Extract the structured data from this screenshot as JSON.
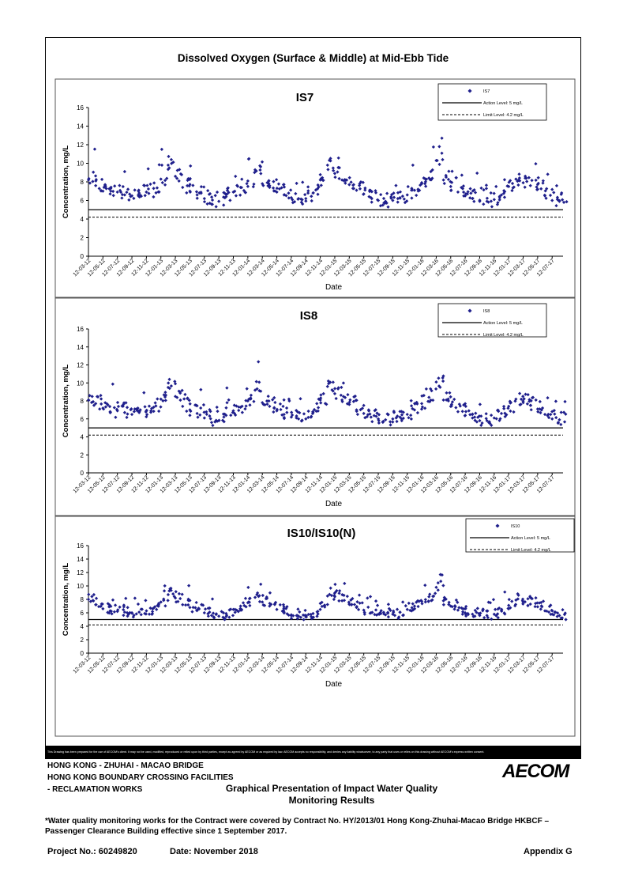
{
  "page": {
    "title": "Dissolved Oxygen (Surface & Middle) at Mid-Ebb Tide",
    "disclaimer": "This Drawing has been prepared for the use of AECOM's client. It may not be used, modified, reproduced or relied upon by third parties, except as agreed by AECOM or as required by law. AECOM accepts no responsibility, and denies any liability whatsoever, to any party that uses or relies on this drawing without AECOM's express written consent.",
    "title_block": {
      "line1": "HONG KONG - ZHUHAI - MACAO BRIDGE",
      "line2": "HONG KONG BOUNDARY CROSSING FACILITIES",
      "line3": "- RECLAMATION WORKS",
      "graph_title_1": "Graphical Presentation of Impact Water Quality",
      "graph_title_2": "Monitoring Results",
      "logo": "AECOM"
    },
    "note": "*Water quality monitoring works for the Contract were covered by Contract No. HY/2013/01 Hong Kong-Zhuhai-Macao Bridge HKBCF – Passenger Clearance Building effective since 1 September 2017.",
    "project_no": "Project No.: 60249820",
    "date": "Date: November 2018",
    "appendix": "Appendix G"
  },
  "chart_data": [
    {
      "type": "scatter",
      "title": "IS7",
      "xlabel": "Date",
      "ylabel": "Concentration, mg/L",
      "ylim": [
        0,
        16
      ],
      "yticks": [
        0,
        2,
        4,
        6,
        8,
        10,
        12,
        14,
        16
      ],
      "xticks": [
        "12-03-12",
        "12-05-12",
        "12-07-12",
        "12-09-12",
        "12-11-12",
        "12-01-13",
        "12-03-13",
        "12-05-13",
        "12-07-13",
        "12-09-13",
        "12-11-13",
        "12-01-14",
        "12-03-14",
        "12-05-14",
        "12-07-14",
        "12-09-14",
        "12-11-14",
        "12-01-15",
        "12-03-15",
        "12-05-15",
        "12-07-15",
        "12-09-15",
        "12-11-15",
        "12-01-16",
        "12-03-16",
        "12-05-16",
        "12-07-16",
        "12-09-16",
        "12-11-16",
        "12-01-17",
        "12-03-17",
        "12-05-17",
        "12-07-17"
      ],
      "legend": [
        "IS7",
        "Action Level: 5 mg/L",
        "Limit Level: 4.2 mg/L"
      ],
      "legend_position": "top-right",
      "action_level": 5,
      "limit_level": 4.2,
      "series_color": "#1f1f8c",
      "x": [
        "12-03-12",
        "12-04-12",
        "12-05-12",
        "12-06-12",
        "12-07-12",
        "12-08-12",
        "12-09-12",
        "12-10-12",
        "12-11-12",
        "12-12-12",
        "12-01-13",
        "12-02-13",
        "12-03-13",
        "12-04-13",
        "12-05-13",
        "12-06-13",
        "12-07-13",
        "12-08-13",
        "12-09-13",
        "12-10-13",
        "12-11-13",
        "12-12-13",
        "12-01-14",
        "12-02-14",
        "12-03-14",
        "12-04-14",
        "12-05-14",
        "12-06-14",
        "12-07-14",
        "12-08-14",
        "12-09-14",
        "12-10-14",
        "12-11-14",
        "12-12-14",
        "12-01-15",
        "12-02-15",
        "12-03-15",
        "12-04-15",
        "12-05-15",
        "12-06-15",
        "12-07-15",
        "12-08-15",
        "12-09-15",
        "12-10-15",
        "12-11-15",
        "12-12-15",
        "12-01-16",
        "12-02-16",
        "12-03-16",
        "12-04-16",
        "12-05-16",
        "12-06-16",
        "12-07-16",
        "12-08-16",
        "12-09-16",
        "12-10-16",
        "12-11-16",
        "12-12-16",
        "12-01-17",
        "12-02-17",
        "12-03-17",
        "12-04-17",
        "12-05-17",
        "12-06-17",
        "12-07-17",
        "12-08-17"
      ],
      "values": [
        8.2,
        7.6,
        7.0,
        6.7,
        6.9,
        6.6,
        6.5,
        6.8,
        6.9,
        7.3,
        8.3,
        9.8,
        8.6,
        7.4,
        7.0,
        6.6,
        6.2,
        5.6,
        5.9,
        6.4,
        6.9,
        7.4,
        8.1,
        9.3,
        7.8,
        7.4,
        6.9,
        6.6,
        6.3,
        6.2,
        6.2,
        6.8,
        8.2,
        9.8,
        8.9,
        8.2,
        7.7,
        7.1,
        6.7,
        6.3,
        6.0,
        5.9,
        6.0,
        6.3,
        6.6,
        7.1,
        7.8,
        8.4,
        10.3,
        8.2,
        7.5,
        6.9,
        6.5,
        6.2,
        5.9,
        5.9,
        6.1,
        6.6,
        7.5,
        8.3,
        7.9,
        7.6,
        7.2,
        6.5,
        6.0,
        5.9
      ]
    },
    {
      "type": "scatter",
      "title": "IS8",
      "xlabel": "Date",
      "ylabel": "Concentration, mg/L",
      "ylim": [
        0,
        16
      ],
      "yticks": [
        0,
        2,
        4,
        6,
        8,
        10,
        12,
        14,
        16
      ],
      "xticks": [
        "12-03-12",
        "12-05-12",
        "12-07-12",
        "12-09-12",
        "12-11-12",
        "12-01-13",
        "12-03-13",
        "12-05-13",
        "12-07-13",
        "12-09-13",
        "12-11-13",
        "12-01-14",
        "12-03-14",
        "12-05-14",
        "12-07-14",
        "12-09-14",
        "12-11-14",
        "12-01-15",
        "12-03-15",
        "12-05-15",
        "12-07-15",
        "12-09-15",
        "12-11-15",
        "12-01-16",
        "12-03-16",
        "12-05-16",
        "12-07-16",
        "12-09-16",
        "12-11-16",
        "12-01-17",
        "12-03-17",
        "12-05-17",
        "12-07-17"
      ],
      "legend": [
        "IS8",
        "Action Level: 5 mg/L",
        "Limit Level: 4.2 mg/L"
      ],
      "legend_position": "top-right",
      "action_level": 5,
      "limit_level": 4.2,
      "series_color": "#1f1f8c",
      "x": [
        "12-03-12",
        "12-04-12",
        "12-05-12",
        "12-06-12",
        "12-07-12",
        "12-08-12",
        "12-09-12",
        "12-10-12",
        "12-11-12",
        "12-12-12",
        "12-01-13",
        "12-02-13",
        "12-03-13",
        "12-04-13",
        "12-05-13",
        "12-06-13",
        "12-07-13",
        "12-08-13",
        "12-09-13",
        "12-10-13",
        "12-11-13",
        "12-12-13",
        "12-01-14",
        "12-02-14",
        "12-03-14",
        "12-04-14",
        "12-05-14",
        "12-06-14",
        "12-07-14",
        "12-08-14",
        "12-09-14",
        "12-10-14",
        "12-11-14",
        "12-12-14",
        "12-01-15",
        "12-02-15",
        "12-03-15",
        "12-04-15",
        "12-05-15",
        "12-06-15",
        "12-07-15",
        "12-08-15",
        "12-09-15",
        "12-10-15",
        "12-11-15",
        "12-12-15",
        "12-01-16",
        "12-02-16",
        "12-03-16",
        "12-04-16",
        "12-05-16",
        "12-06-16",
        "12-07-16",
        "12-08-16",
        "12-09-16",
        "12-10-16",
        "12-11-16",
        "12-12-16",
        "12-01-17",
        "12-02-17",
        "12-03-17",
        "12-04-17",
        "12-05-17",
        "12-06-17",
        "12-07-17",
        "12-08-17"
      ],
      "values": [
        8.1,
        7.7,
        7.2,
        6.8,
        6.9,
        6.7,
        6.5,
        6.7,
        6.9,
        7.3,
        8.2,
        9.5,
        8.5,
        7.4,
        7.0,
        6.6,
        6.1,
        5.6,
        5.8,
        6.4,
        6.9,
        7.3,
        8.0,
        9.2,
        7.8,
        7.4,
        6.9,
        6.5,
        6.2,
        6.0,
        6.0,
        6.7,
        8.1,
        9.6,
        8.8,
        8.1,
        7.6,
        7.0,
        6.6,
        6.2,
        6.0,
        5.9,
        6.0,
        6.2,
        6.5,
        7.0,
        7.7,
        8.4,
        10.1,
        8.1,
        7.4,
        6.8,
        6.4,
        6.1,
        5.8,
        5.8,
        6.1,
        6.6,
        7.4,
        8.2,
        7.8,
        7.5,
        7.1,
        6.5,
        6.0,
        5.9
      ]
    },
    {
      "type": "scatter",
      "title": "IS10/IS10(N)",
      "xlabel": "Date",
      "ylabel": "Concentration, mg/L",
      "ylim": [
        0,
        16
      ],
      "yticks": [
        0,
        2,
        4,
        6,
        8,
        10,
        12,
        14,
        16
      ],
      "xticks": [
        "12-03-12",
        "12-05-12",
        "12-07-12",
        "12-09-12",
        "12-11-12",
        "12-01-13",
        "12-03-13",
        "12-05-13",
        "12-07-13",
        "12-09-13",
        "12-11-13",
        "12-01-14",
        "12-03-14",
        "12-05-14",
        "12-07-14",
        "12-09-14",
        "12-11-14",
        "12-01-15",
        "12-03-15",
        "12-05-15",
        "12-07-15",
        "12-09-15",
        "12-11-15",
        "12-01-16",
        "12-03-16",
        "12-05-16",
        "12-07-16",
        "12-09-16",
        "12-11-16",
        "12-01-17",
        "12-03-17",
        "12-05-17",
        "12-07-17"
      ],
      "legend": [
        "IS10",
        "Action Level: 5 mg/L",
        "Limit Level: 4.2 mg/L"
      ],
      "legend_position": "top-right",
      "action_level": 5,
      "limit_level": 4.2,
      "series_color": "#1f1f8c",
      "x": [
        "12-03-12",
        "12-04-12",
        "12-05-12",
        "12-06-12",
        "12-07-12",
        "12-08-12",
        "12-09-12",
        "12-10-12",
        "12-11-12",
        "12-12-12",
        "12-01-13",
        "12-02-13",
        "12-03-13",
        "12-04-13",
        "12-05-13",
        "12-06-13",
        "12-07-13",
        "12-08-13",
        "12-09-13",
        "12-10-13",
        "12-11-13",
        "12-12-13",
        "12-01-14",
        "12-02-14",
        "12-03-14",
        "12-04-14",
        "12-05-14",
        "12-06-14",
        "12-07-14",
        "12-08-14",
        "12-09-14",
        "12-10-14",
        "12-11-14",
        "12-12-14",
        "12-01-15",
        "12-02-15",
        "12-03-15",
        "12-04-15",
        "12-05-15",
        "12-06-15",
        "12-07-15",
        "12-08-15",
        "12-09-15",
        "12-10-15",
        "12-11-15",
        "12-12-15",
        "12-01-16",
        "12-02-16",
        "12-03-16",
        "12-04-16",
        "12-05-16",
        "12-06-16",
        "12-07-16",
        "12-08-16",
        "12-09-16",
        "12-10-16",
        "12-11-16",
        "12-12-16",
        "12-01-17",
        "12-02-17",
        "12-03-17",
        "12-04-17",
        "12-05-17",
        "12-06-17",
        "12-07-17",
        "12-08-17"
      ],
      "values": [
        8.0,
        7.2,
        6.6,
        6.3,
        6.2,
        6.1,
        6.0,
        6.1,
        6.3,
        6.7,
        7.6,
        8.7,
        8.2,
        7.2,
        6.8,
        6.4,
        6.0,
        5.6,
        5.5,
        5.9,
        6.5,
        7.0,
        7.5,
        8.3,
        7.6,
        7.0,
        6.5,
        6.1,
        5.7,
        5.5,
        5.4,
        5.9,
        7.4,
        8.5,
        8.4,
        7.8,
        7.3,
        6.8,
        6.4,
        6.0,
        5.8,
        5.7,
        5.8,
        6.1,
        6.5,
        7.0,
        7.7,
        8.4,
        9.8,
        7.8,
        7.0,
        6.4,
        6.0,
        5.8,
        5.6,
        5.6,
        5.8,
        6.3,
        7.1,
        7.9,
        7.6,
        7.3,
        6.9,
        6.3,
        5.8,
        5.6
      ]
    }
  ]
}
